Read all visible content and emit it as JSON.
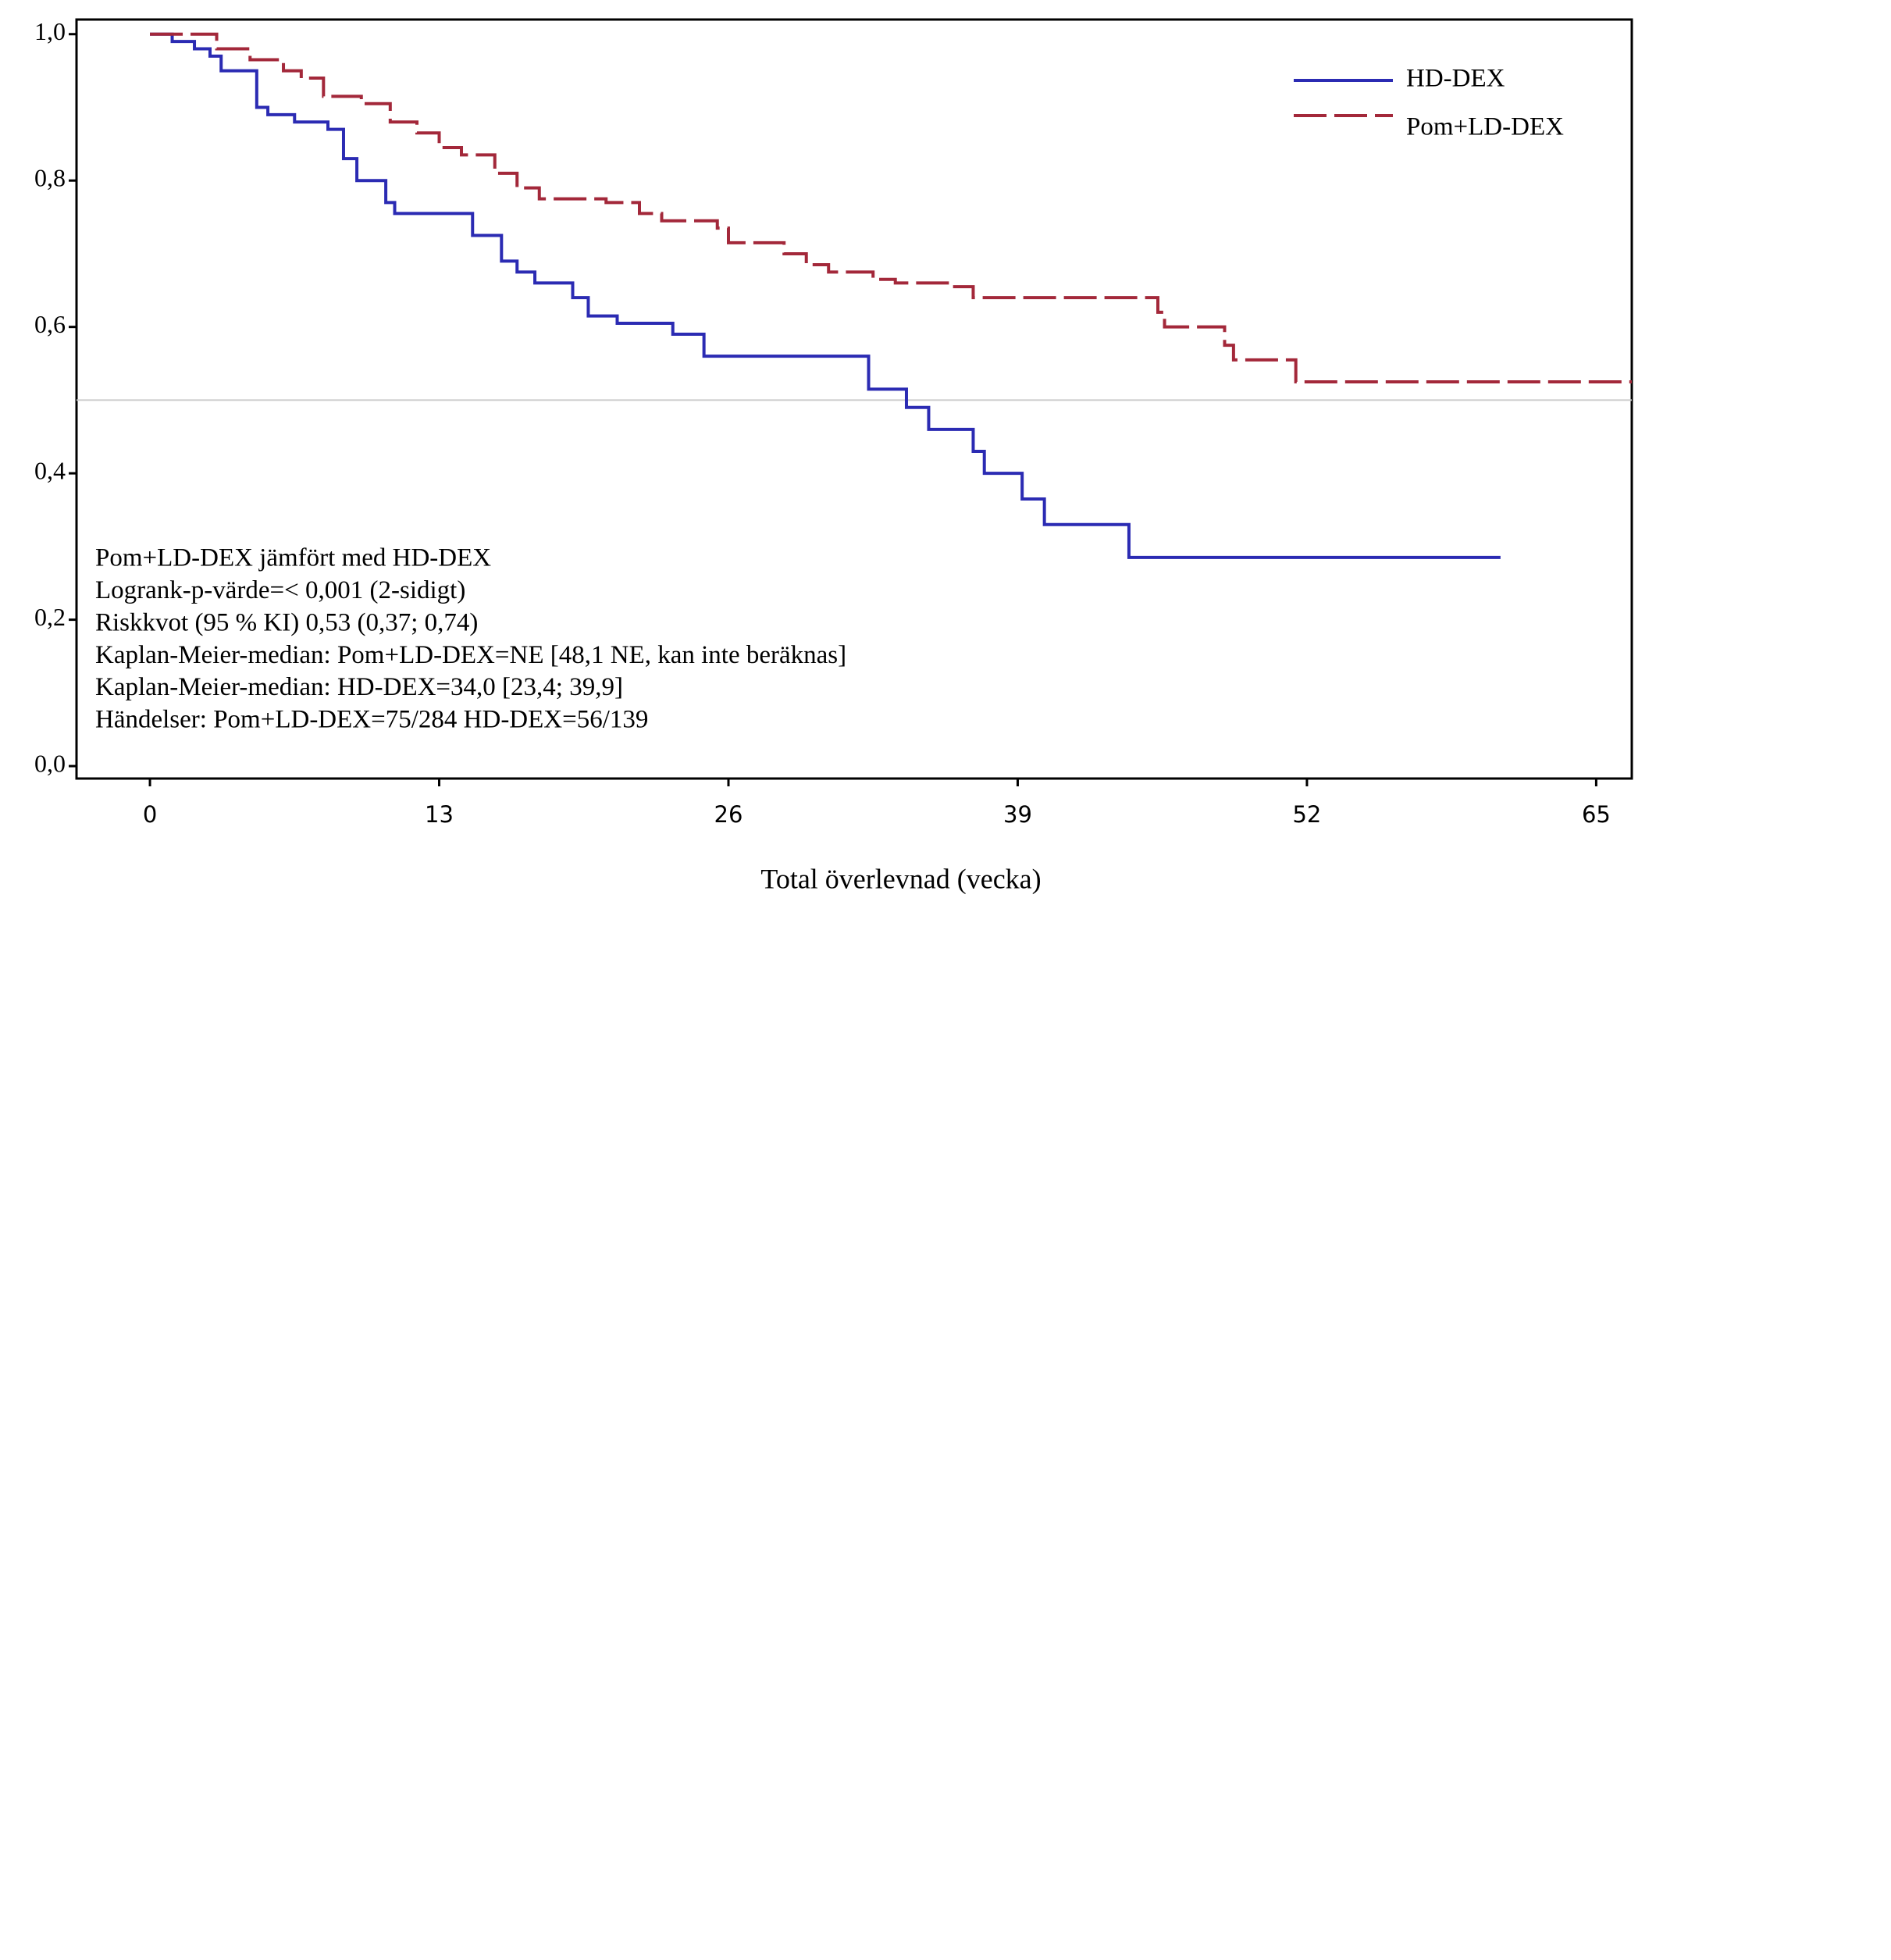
{
  "chart_data": {
    "type": "step",
    "x_label": "Total överlevnad (vecka)",
    "xlim": [
      -3.3,
      66.6
    ],
    "xticks": [
      0,
      13,
      26,
      39,
      52,
      65
    ],
    "ylim": [
      -0.017,
      1.02
    ],
    "yticks": [
      {
        "value": 0,
        "label": "0,0"
      },
      {
        "value": 0.2,
        "label": "0,2"
      },
      {
        "value": 0.4,
        "label": "0,4"
      },
      {
        "value": 0.6,
        "label": "0,6"
      },
      {
        "value": 0.8,
        "label": "0,8"
      },
      {
        "value": 1,
        "label": "1,0"
      }
    ],
    "hline": 0.5,
    "legend": "upper right",
    "annotations": [
      "Pom+LD-DEX jämfört med HD-DEX",
      "Logrank-p-värde=< 0,001 (2-sidigt)",
      "Riskkvot (95 % KI) 0,53 (0,37; 0,74)",
      "Kaplan-Meier-median:  Pom+LD-DEX=NE [48,1 NE, kan inte beräknas]",
      "Kaplan-Meier-median:  HD-DEX=34,0 [23,4; 39,9]",
      "Händelser:  Pom+LD-DEX=75/284 HD-DEX=56/139"
    ],
    "series": [
      {
        "name": "HD-DEX",
        "color": "#2b2bb3",
        "dash": false,
        "x": [
          0,
          1,
          2,
          2.7,
          3.2,
          4.8,
          5.3,
          6.5,
          8,
          8.7,
          9.3,
          10.6,
          11,
          14.5,
          15.8,
          16.5,
          17.3,
          19,
          19.7,
          21,
          23.5,
          24.9,
          32.3,
          34,
          35,
          37,
          37.5,
          39.2,
          40.2,
          44,
          60.7
        ],
        "values": [
          1,
          0.99,
          0.98,
          0.97,
          0.95,
          0.9,
          0.89,
          0.88,
          0.87,
          0.83,
          0.8,
          0.77,
          0.755,
          0.725,
          0.69,
          0.675,
          0.66,
          0.64,
          0.615,
          0.605,
          0.59,
          0.56,
          0.515,
          0.49,
          0.46,
          0.43,
          0.4,
          0.365,
          0.33,
          0.285,
          0.285
        ]
      },
      {
        "name": "Pom+LD-DEX",
        "color": "#a3283a",
        "dash": true,
        "x": [
          0,
          3,
          4.5,
          6,
          6.8,
          7.8,
          9.5,
          10.8,
          12,
          13,
          14,
          15.5,
          16.5,
          17.5,
          20.5,
          22,
          23,
          25.5,
          26,
          28.5,
          29.5,
          30.5,
          32.5,
          33.5,
          36,
          37,
          45.3,
          45.6,
          48.3,
          48.7,
          51.5,
          66.6
        ],
        "values": [
          1,
          0.98,
          0.965,
          0.95,
          0.94,
          0.915,
          0.905,
          0.88,
          0.865,
          0.845,
          0.835,
          0.81,
          0.79,
          0.775,
          0.77,
          0.755,
          0.745,
          0.735,
          0.715,
          0.7,
          0.685,
          0.675,
          0.665,
          0.66,
          0.655,
          0.64,
          0.62,
          0.6,
          0.575,
          0.555,
          0.525,
          0.525
        ]
      }
    ]
  }
}
